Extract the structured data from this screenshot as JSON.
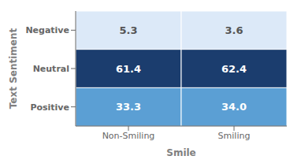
{
  "chart_data": {
    "type": "heatmap",
    "xlabel": "Smile",
    "ylabel": "Text Sentiment",
    "categories": [
      "Non-Smiling",
      "Smiling"
    ],
    "y_categories": [
      "Negative",
      "Neutral",
      "Positive"
    ],
    "values": [
      [
        5.3,
        3.6
      ],
      [
        61.4,
        62.4
      ],
      [
        33.3,
        34.0
      ]
    ],
    "value_labels": [
      [
        "5.3",
        "3.6"
      ],
      [
        "61.4",
        "62.4"
      ],
      [
        "33.3",
        "34.0"
      ]
    ],
    "colors": [
      [
        "#dce9f8",
        "#dce9f8"
      ],
      [
        "#1b3d6e",
        "#1b3d6e"
      ],
      [
        "#5b9fd4",
        "#5b9fd4"
      ]
    ],
    "data_labels": true
  }
}
